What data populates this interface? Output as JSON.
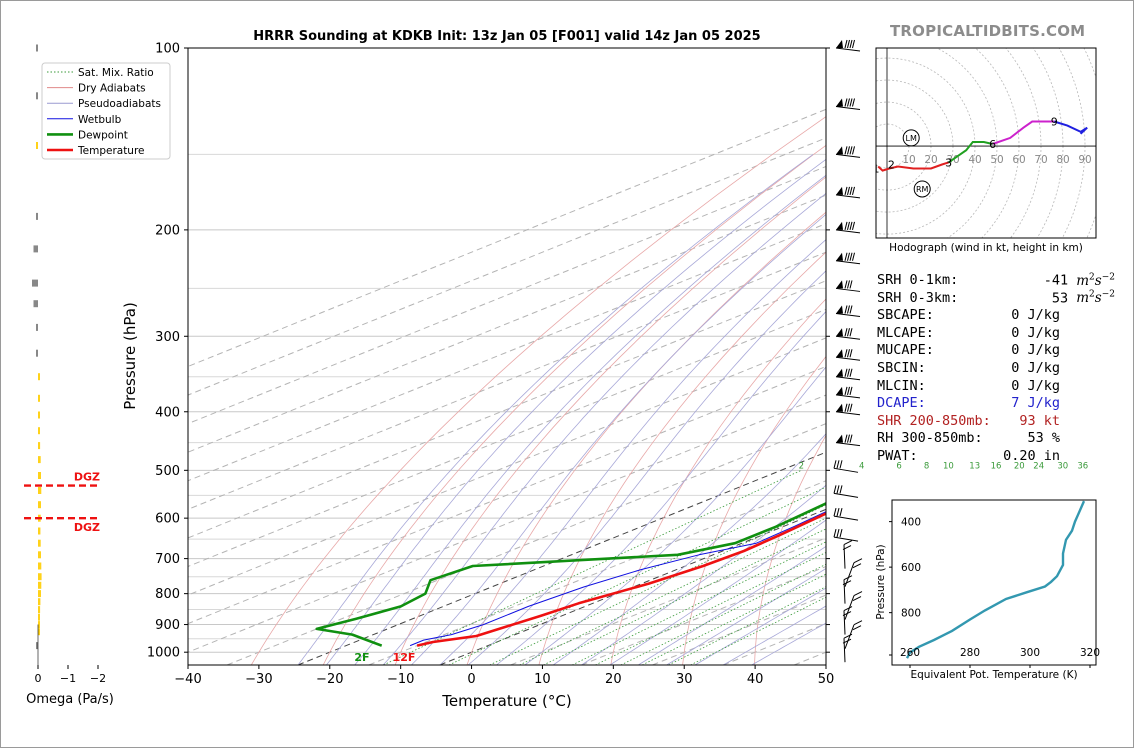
{
  "header": {
    "title": "HRRR Sounding at KDKB Init: 13z Jan 05 [F001] valid 14z Jan 05 2025",
    "brand": "TROPICALTIDBITS.COM"
  },
  "chart_data": [
    {
      "id": "skewt",
      "type": "line",
      "title": "HRRR Sounding at KDKB Init: 13z Jan 05 [F001] valid 14z Jan 05 2025",
      "xlabel": "Temperature (°C)",
      "ylabel": "Pressure (hPa)",
      "xlim": [
        -40,
        50
      ],
      "ylim": [
        1050,
        100
      ],
      "yscale": "log",
      "x_ticks": [
        -40,
        -30,
        -20,
        -10,
        0,
        10,
        20,
        30,
        40,
        50
      ],
      "x_tick_labels": [
        "−40",
        "−30",
        "−20",
        "−10",
        "0",
        "10",
        "20",
        "30",
        "40",
        "50"
      ],
      "y_ticks": [
        100,
        200,
        300,
        400,
        500,
        600,
        700,
        800,
        900,
        1000
      ],
      "legend": {
        "placement": "top-left",
        "entries": [
          {
            "name": "Sat. Mix. Ratio",
            "color": "#3a9a3a",
            "style": "dotted"
          },
          {
            "name": "Dry Adiabats",
            "color": "#e08a8a",
            "style": "solid"
          },
          {
            "name": "Pseudoadiabats",
            "color": "#9a9ad0",
            "style": "solid"
          },
          {
            "name": "Wetbulb",
            "color": "#1010e0",
            "style": "solid"
          },
          {
            "name": "Dewpoint",
            "color": "#109010",
            "style": "solid"
          },
          {
            "name": "Temperature",
            "color": "#ee1111",
            "style": "solid"
          }
        ]
      },
      "mixing_ratio_labels": [
        "2",
        "4",
        "6",
        "8",
        "10",
        "13",
        "16",
        "20",
        "24",
        "30",
        "36"
      ],
      "surface_labels": {
        "dewpoint": "2F",
        "temperature": "12F"
      },
      "series": [
        {
          "name": "Temperature",
          "color": "#ee1111",
          "points": [
            [
              -10,
              975
            ],
            [
              -9,
              962
            ],
            [
              -5,
              940
            ],
            [
              -4,
              905
            ],
            [
              -3,
              870
            ],
            [
              -2,
              830
            ],
            [
              1,
              770
            ],
            [
              2.5,
              720
            ],
            [
              3,
              680
            ],
            [
              2.5,
              640
            ],
            [
              1.5,
              590
            ],
            [
              0,
              540
            ],
            [
              -2,
              500
            ],
            [
              -4,
              460
            ],
            [
              -6,
              420
            ],
            [
              -9,
              370
            ],
            [
              -14,
              320
            ],
            [
              -18,
              280
            ],
            [
              -17,
              240
            ],
            [
              -15,
              200
            ],
            [
              -12,
              170
            ],
            [
              -9,
              140
            ],
            [
              -6,
              120
            ],
            [
              -3,
              100
            ]
          ]
        },
        {
          "name": "Dewpoint",
          "color": "#109010",
          "points": [
            [
              -15,
              975
            ],
            [
              -23,
              935
            ],
            [
              -30,
              915
            ],
            [
              -28,
              880
            ],
            [
              -26,
              840
            ],
            [
              -27,
              800
            ],
            [
              -31,
              760
            ],
            [
              -30,
              720
            ],
            [
              -5,
              690
            ],
            [
              -1,
              660
            ],
            [
              -1,
              620
            ],
            [
              -2,
              570
            ],
            [
              -3,
              530
            ],
            [
              -6,
              490
            ],
            [
              -8,
              440
            ],
            [
              -11,
              390
            ],
            [
              -15,
              340
            ],
            [
              -20,
              290
            ],
            [
              -23,
              270
            ],
            [
              -22,
              230
            ],
            [
              -20,
              200
            ],
            [
              -25,
              170
            ],
            [
              -28,
              140
            ],
            [
              -26,
              120
            ],
            [
              -21,
              100
            ]
          ]
        },
        {
          "name": "Wetbulb",
          "color": "#1010e0",
          "points": [
            [
              -11,
              975
            ],
            [
              -11,
              955
            ],
            [
              -9,
              935
            ],
            [
              -8,
              900
            ],
            [
              -8,
              840
            ],
            [
              -7,
              780
            ],
            [
              -5,
              730
            ],
            [
              -2,
              690
            ],
            [
              2,
              660
            ],
            [
              1.5,
              620
            ],
            [
              0.5,
              570
            ],
            [
              -1,
              530
            ],
            [
              -3,
              490
            ],
            [
              -6,
              440
            ],
            [
              -9,
              390
            ],
            [
              -14,
              330
            ],
            [
              -18,
              280
            ],
            [
              -17,
              240
            ],
            [
              -15,
              200
            ],
            [
              -12,
              170
            ],
            [
              -9,
              140
            ],
            [
              -6,
              120
            ],
            [
              -3,
              100
            ]
          ]
        }
      ]
    },
    {
      "id": "omega",
      "type": "bar",
      "xlabel": "Omega (Pa/s)",
      "x_ticks": [
        0,
        -1,
        -2
      ],
      "x_tick_labels": [
        "0",
        "−1",
        "−2"
      ],
      "dgz_labels": [
        "DGZ",
        "DGZ"
      ],
      "dgz_pressures": [
        530,
        600
      ],
      "bars": [
        {
          "p": 100,
          "omega": 0.05,
          "color": "#888888"
        },
        {
          "p": 120,
          "omega": 0.05,
          "color": "#888888"
        },
        {
          "p": 145,
          "omega": 0.02,
          "color": "#ffd21a"
        },
        {
          "p": 190,
          "omega": 0.05,
          "color": "#888888"
        },
        {
          "p": 215,
          "omega": 0.15,
          "color": "#888888"
        },
        {
          "p": 245,
          "omega": 0.2,
          "color": "#888888"
        },
        {
          "p": 265,
          "omega": 0.15,
          "color": "#888888"
        },
        {
          "p": 290,
          "omega": 0.05,
          "color": "#888888"
        },
        {
          "p": 320,
          "omega": 0.02,
          "color": "#888888"
        },
        {
          "p": 350,
          "omega": -0.02,
          "color": "#ffd21a"
        },
        {
          "p": 380,
          "omega": -0.04,
          "color": "#ffd21a"
        },
        {
          "p": 405,
          "omega": -0.05,
          "color": "#ffd21a"
        },
        {
          "p": 430,
          "omega": -0.06,
          "color": "#ffd21a"
        },
        {
          "p": 455,
          "omega": -0.07,
          "color": "#ffd21a"
        },
        {
          "p": 480,
          "omega": -0.09,
          "color": "#ffd21a"
        },
        {
          "p": 510,
          "omega": -0.1,
          "color": "#ffd21a"
        },
        {
          "p": 540,
          "omega": -0.11,
          "color": "#ffd21a"
        },
        {
          "p": 570,
          "omega": -0.1,
          "color": "#ffd21a"
        },
        {
          "p": 600,
          "omega": -0.09,
          "color": "#ffd21a"
        },
        {
          "p": 630,
          "omega": -0.08,
          "color": "#ffd21a"
        },
        {
          "p": 660,
          "omega": -0.09,
          "color": "#ffd21a"
        },
        {
          "p": 690,
          "omega": -0.1,
          "color": "#ffd21a"
        },
        {
          "p": 720,
          "omega": -0.11,
          "color": "#ffd21a"
        },
        {
          "p": 750,
          "omega": -0.12,
          "color": "#ffd21a"
        },
        {
          "p": 775,
          "omega": -0.11,
          "color": "#ffd21a"
        },
        {
          "p": 800,
          "omega": -0.1,
          "color": "#ffd21a"
        },
        {
          "p": 825,
          "omega": -0.08,
          "color": "#ffd21a"
        },
        {
          "p": 850,
          "omega": -0.07,
          "color": "#ffd21a"
        },
        {
          "p": 875,
          "omega": -0.06,
          "color": "#ffd21a"
        },
        {
          "p": 900,
          "omega": -0.05,
          "color": "#ffd21a"
        },
        {
          "p": 925,
          "omega": -0.04,
          "color": "#ffd21a"
        },
        {
          "p": 975,
          "omega": 0.02,
          "color": "#888888"
        }
      ]
    },
    {
      "id": "hodograph",
      "type": "line",
      "xlabel": "Hodograph (wind in kt, height in km)",
      "xlim": [
        -5,
        95
      ],
      "ylim": [
        -45,
        48
      ],
      "ring_labels": [
        "10",
        "20",
        "30",
        "40",
        "50",
        "60",
        "70",
        "80",
        "90"
      ],
      "markers": [
        {
          "label": "LM",
          "u": 11,
          "v": 4
        },
        {
          "label": "RM",
          "u": 16,
          "v": -21
        }
      ],
      "height_labels": [
        {
          "label": "1",
          "u": -5,
          "v": -11
        },
        {
          "label": "2",
          "u": 2,
          "v": -9
        },
        {
          "label": "3",
          "u": 28,
          "v": -8
        },
        {
          "label": "6",
          "u": 48,
          "v": 1
        },
        {
          "label": "9",
          "u": 76,
          "v": 12
        }
      ],
      "segments": [
        {
          "color": "#e02020",
          "points": [
            [
              -4,
              -10
            ],
            [
              -2,
              -12
            ],
            [
              1,
              -11
            ],
            [
              5,
              -10
            ],
            [
              12,
              -11
            ],
            [
              20,
              -11
            ],
            [
              25,
              -9
            ],
            [
              28,
              -8
            ]
          ]
        },
        {
          "color": "#20a020",
          "points": [
            [
              28,
              -8
            ],
            [
              32,
              -5
            ],
            [
              36,
              -2
            ],
            [
              39,
              2
            ],
            [
              44,
              2
            ],
            [
              48,
              1
            ]
          ]
        },
        {
          "color": "#cc22cc",
          "points": [
            [
              48,
              1
            ],
            [
              56,
              4
            ],
            [
              62,
              9
            ],
            [
              66,
              12
            ],
            [
              72,
              12
            ],
            [
              76,
              12
            ]
          ]
        },
        {
          "color": "#2020e0",
          "points": [
            [
              76,
              12
            ],
            [
              82,
              10
            ],
            [
              88,
              7
            ],
            [
              91,
              9
            ],
            [
              88,
              6
            ]
          ]
        }
      ]
    },
    {
      "id": "theta_e",
      "type": "line",
      "xlabel": "Equivalent Pot. Temperature (K)",
      "ylabel": "Pressure (hPa)",
      "x_ticks": [
        260,
        280,
        300,
        320
      ],
      "y_ticks": [
        400,
        600,
        800
      ],
      "xlim": [
        254,
        322
      ],
      "ylim": [
        1030,
        305
      ],
      "color": "#3398b0",
      "points": [
        [
          259,
          1000
        ],
        [
          260,
          975
        ],
        [
          263,
          950
        ],
        [
          268,
          920
        ],
        [
          274,
          880
        ],
        [
          280,
          830
        ],
        [
          285,
          790
        ],
        [
          292,
          740
        ],
        [
          299,
          710
        ],
        [
          305,
          685
        ],
        [
          307,
          665
        ],
        [
          309,
          640
        ],
        [
          311,
          590
        ],
        [
          311,
          540
        ],
        [
          312,
          480
        ],
        [
          314,
          440
        ],
        [
          315,
          400
        ],
        [
          316,
          370
        ],
        [
          317,
          340
        ],
        [
          318,
          310
        ]
      ]
    }
  ],
  "parameters": [
    {
      "label": "SRH 0-1km:",
      "value": "-41",
      "unit_base": "m",
      "unit_sup1": "2",
      "unit_mid": "s",
      "unit_sup2": "−2",
      "color": "#000000"
    },
    {
      "label": "SRH 0-3km:",
      "value": "53",
      "unit_base": "m",
      "unit_sup1": "2",
      "unit_mid": "s",
      "unit_sup2": "−2",
      "color": "#000000"
    },
    {
      "label": "SBCAPE:",
      "value": "0 J/kg",
      "color": "#000000"
    },
    {
      "label": "MLCAPE:",
      "value": "0 J/kg",
      "color": "#000000"
    },
    {
      "label": "MUCAPE:",
      "value": "0 J/kg",
      "color": "#000000"
    },
    {
      "label": "SBCIN:",
      "value": "0 J/kg",
      "color": "#000000"
    },
    {
      "label": "MLCIN:",
      "value": "0 J/kg",
      "color": "#000000"
    },
    {
      "label": "DCAPE:",
      "value": "7 J/kg",
      "color": "#2222cc"
    },
    {
      "label": "SHR 200-850mb:",
      "value": "93 kt",
      "color": "#b22222"
    },
    {
      "label": "RH 300-850mb:",
      "value": "53 %",
      "color": "#000000"
    },
    {
      "label": "PWAT:",
      "value": "0.20 in",
      "color": "#000000"
    }
  ]
}
